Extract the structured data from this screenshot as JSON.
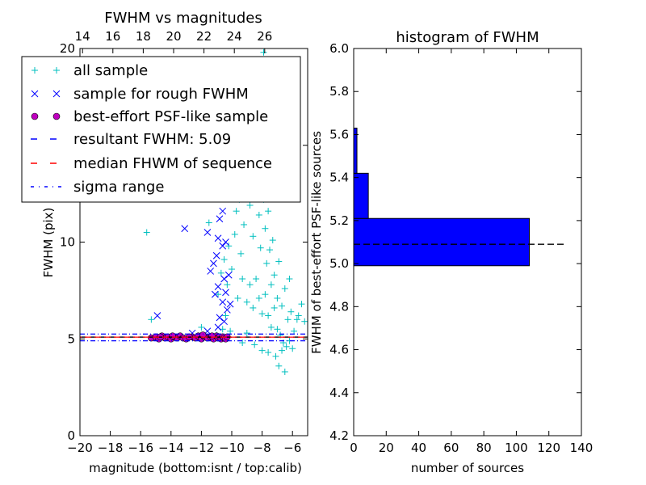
{
  "chart_data": [
    {
      "type": "scatter",
      "title": "FWHM vs magnitudes",
      "xlabel": "magnitude (bottom:isnt / top:calib)",
      "ylabel": "FWHM (pix)",
      "xlim": [
        -20,
        -5
      ],
      "ylim": [
        0,
        20
      ],
      "x_ticks": [
        -20,
        -18,
        -16,
        -14,
        -12,
        -10,
        -8,
        -6
      ],
      "x_tick_labels": [
        "−20",
        "−18",
        "−16",
        "−14",
        "−12",
        "−10",
        "−8",
        "−6"
      ],
      "y_ticks": [
        0,
        5,
        10,
        15,
        20
      ],
      "y_tick_labels": [
        "0",
        "5",
        "10",
        "15",
        "20"
      ],
      "top_x_ticks": [
        14,
        16,
        18,
        20,
        22,
        24,
        26
      ],
      "top_x_tick_labels": [
        "14",
        "16",
        "18",
        "20",
        "22",
        "24",
        "26"
      ],
      "top_axis_offset": 33.83,
      "lines": {
        "resultant_fwhm": 5.09,
        "median_fwhm": 5.09,
        "sigma_range": [
          4.9,
          5.25
        ]
      },
      "legend": {
        "placement": "upper-left",
        "entries": [
          {
            "label": "all sample",
            "marker": "+",
            "color": "#00bfbf"
          },
          {
            "label": "sample for rough FWHM",
            "marker": "x",
            "color": "#0000ff"
          },
          {
            "label": "best-effort PSF-like sample",
            "marker": "o",
            "color": "#bf00bf"
          },
          {
            "label": "resultant FWHM: 5.09",
            "marker": "dashed",
            "color": "#0000ff"
          },
          {
            "label": "median FHWM of sequence",
            "marker": "dashed",
            "color": "#ff0000"
          },
          {
            "label": "sigma range",
            "marker": "dashdot",
            "color": "#0000ff"
          }
        ]
      },
      "series": [
        {
          "name": "all sample",
          "color": "#00bfbf",
          "points": [
            [
              -15.6,
              10.5
            ],
            [
              -15.3,
              6.0
            ],
            [
              -12.0,
              5.6
            ],
            [
              -11.5,
              11.0
            ],
            [
              -10.9,
              7.3
            ],
            [
              -10.7,
              8.4
            ],
            [
              -10.5,
              9.1
            ],
            [
              -10.3,
              7.8
            ],
            [
              -10.2,
              9.8
            ],
            [
              -10.0,
              8.6
            ],
            [
              -9.8,
              10.4
            ],
            [
              -9.7,
              11.6
            ],
            [
              -9.5,
              12.2
            ],
            [
              -9.4,
              9.4
            ],
            [
              -9.2,
              10.9
            ],
            [
              -9.1,
              12.7
            ],
            [
              -8.9,
              13.4
            ],
            [
              -8.8,
              11.9
            ],
            [
              -8.7,
              14.3
            ],
            [
              -8.6,
              10.3
            ],
            [
              -8.5,
              12.8
            ],
            [
              -8.4,
              15.2
            ],
            [
              -8.3,
              13.6
            ],
            [
              -8.2,
              11.4
            ],
            [
              -8.1,
              9.7
            ],
            [
              -8.0,
              14.1
            ],
            [
              -7.9,
              12.2
            ],
            [
              -7.8,
              10.7
            ],
            [
              -7.7,
              8.9
            ],
            [
              -7.6,
              11.6
            ],
            [
              -7.5,
              9.6
            ],
            [
              -7.4,
              7.8
            ],
            [
              -7.3,
              10.1
            ],
            [
              -7.2,
              8.3
            ],
            [
              -7.0,
              7.1
            ],
            [
              -6.9,
              9.0
            ],
            [
              -6.7,
              6.7
            ],
            [
              -6.5,
              7.6
            ],
            [
              -6.3,
              6.0
            ],
            [
              -6.1,
              6.4
            ],
            [
              -5.9,
              5.4
            ],
            [
              -5.7,
              6.0
            ],
            [
              -5.4,
              6.8
            ],
            [
              -5.2,
              5.9
            ],
            [
              -9.6,
              7.1
            ],
            [
              -9.3,
              8.1
            ],
            [
              -9.0,
              6.9
            ],
            [
              -8.8,
              7.8
            ],
            [
              -8.6,
              6.6
            ],
            [
              -8.4,
              8.1
            ],
            [
              -8.2,
              7.1
            ],
            [
              -8.0,
              6.3
            ],
            [
              -7.8,
              7.3
            ],
            [
              -7.6,
              6.2
            ],
            [
              -7.4,
              5.6
            ],
            [
              -7.2,
              6.6
            ],
            [
              -7.0,
              5.5
            ],
            [
              -6.8,
              5.2
            ],
            [
              -6.6,
              4.8
            ],
            [
              -6.4,
              4.6
            ],
            [
              -6.2,
              4.9
            ],
            [
              -6.0,
              4.5
            ],
            [
              -7.6,
              4.3
            ],
            [
              -6.9,
              3.6
            ],
            [
              -6.5,
              3.3
            ],
            [
              -8.5,
              4.7
            ],
            [
              -9.0,
              5.3
            ],
            [
              -10.1,
              5.4
            ],
            [
              -9.3,
              4.8
            ],
            [
              -8.0,
              4.4
            ],
            [
              -7.1,
              4.1
            ],
            [
              -6.7,
              4.4
            ],
            [
              -10.6,
              5.5
            ],
            [
              -11.0,
              5.2
            ],
            [
              -10.4,
              6.2
            ],
            [
              -8.3,
              19.0
            ],
            [
              -7.9,
              19.8
            ],
            [
              -7.5,
              19.4
            ],
            [
              -7.2,
              17.3
            ],
            [
              -8.6,
              17.9
            ],
            [
              -9.2,
              16.1
            ],
            [
              -7.7,
              16.5
            ],
            [
              -6.2,
              8.1
            ],
            [
              -5.6,
              6.2
            ]
          ]
        },
        {
          "name": "sample for rough FWHM",
          "color": "#0000ff",
          "points": [
            [
              -14.9,
              6.2
            ],
            [
              -13.1,
              10.7
            ],
            [
              -11.6,
              10.5
            ],
            [
              -11.4,
              8.5
            ],
            [
              -11.2,
              8.9
            ],
            [
              -11.0,
              9.3
            ],
            [
              -10.9,
              10.2
            ],
            [
              -10.8,
              11.2
            ],
            [
              -10.7,
              12.7
            ],
            [
              -10.6,
              9.8
            ],
            [
              -10.5,
              8.1
            ],
            [
              -10.9,
              7.7
            ],
            [
              -11.1,
              7.3
            ],
            [
              -10.6,
              6.9
            ],
            [
              -10.8,
              6.1
            ],
            [
              -10.5,
              5.9
            ],
            [
              -10.9,
              5.6
            ],
            [
              -10.4,
              7.4
            ],
            [
              -10.3,
              6.5
            ],
            [
              -11.6,
              5.4
            ],
            [
              -10.7,
              14.5
            ],
            [
              -10.6,
              11.6
            ],
            [
              -10.4,
              10.0
            ],
            [
              -10.2,
              8.3
            ],
            [
              -10.1,
              6.8
            ],
            [
              -12.6,
              5.3
            ]
          ]
        },
        {
          "name": "best-effort PSF-like sample",
          "color": "#bf00bf",
          "points": [
            [
              -15.3,
              5.05
            ],
            [
              -15.0,
              5.1
            ],
            [
              -14.8,
              5.0
            ],
            [
              -14.6,
              5.15
            ],
            [
              -14.4,
              5.05
            ],
            [
              -14.2,
              5.1
            ],
            [
              -14.0,
              5.0
            ],
            [
              -13.8,
              5.1
            ],
            [
              -13.6,
              5.05
            ],
            [
              -13.4,
              5.15
            ],
            [
              -13.2,
              5.05
            ],
            [
              -13.0,
              5.0
            ],
            [
              -12.6,
              5.1
            ],
            [
              -12.4,
              5.05
            ],
            [
              -12.2,
              5.15
            ],
            [
              -12.0,
              5.0
            ],
            [
              -11.8,
              5.1
            ],
            [
              -11.6,
              5.05
            ],
            [
              -11.4,
              5.1
            ],
            [
              -11.2,
              5.0
            ],
            [
              -11.0,
              5.15
            ],
            [
              -10.9,
              5.05
            ],
            [
              -10.8,
              5.1
            ],
            [
              -10.7,
              5.0
            ],
            [
              -10.6,
              5.1
            ],
            [
              -10.5,
              5.05
            ],
            [
              -10.4,
              5.0
            ],
            [
              -10.3,
              5.1
            ],
            [
              -14.7,
              5.1
            ],
            [
              -13.9,
              5.15
            ],
            [
              -12.8,
              5.1
            ],
            [
              -11.9,
              5.2
            ],
            [
              -11.3,
              5.15
            ]
          ]
        }
      ]
    },
    {
      "type": "bar",
      "orientation": "horizontal",
      "title": "histogram of FWHM",
      "xlabel": "number of sources",
      "ylabel": "FWHM of best-effort PSF-like sources",
      "xlim": [
        0,
        140
      ],
      "ylim": [
        4.2,
        6.0
      ],
      "x_ticks": [
        0,
        20,
        40,
        60,
        80,
        100,
        120,
        140
      ],
      "x_tick_labels": [
        "0",
        "20",
        "40",
        "60",
        "80",
        "100",
        "120",
        "140"
      ],
      "y_ticks": [
        4.2,
        4.4,
        4.6,
        4.8,
        5.0,
        5.2,
        5.4,
        5.6,
        5.8,
        6.0
      ],
      "y_tick_labels": [
        "4.2",
        "4.4",
        "4.6",
        "4.8",
        "5.0",
        "5.2",
        "5.4",
        "5.6",
        "5.8",
        "6.0"
      ],
      "reference_line": 5.09,
      "color": "#0000ff",
      "bins": [
        {
          "from": 4.99,
          "to": 5.21,
          "count": 108
        },
        {
          "from": 5.21,
          "to": 5.42,
          "count": 9
        },
        {
          "from": 5.42,
          "to": 5.63,
          "count": 2
        }
      ]
    }
  ]
}
